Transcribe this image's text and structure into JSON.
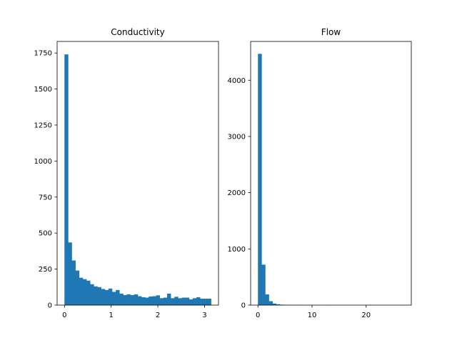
{
  "chart_data": [
    {
      "type": "bar",
      "title": "Conductivity",
      "xlabel": "",
      "ylabel": "",
      "xlim": [
        -0.157,
        3.299
      ],
      "ylim": [
        0,
        1830
      ],
      "xticks": [
        0,
        1,
        2,
        3
      ],
      "yticks": [
        0,
        250,
        500,
        750,
        1000,
        1250,
        1500,
        1750
      ],
      "bins": {
        "start": 0.0,
        "width": 0.0785,
        "count": 40
      },
      "values": [
        1740,
        435,
        310,
        240,
        190,
        180,
        170,
        145,
        130,
        125,
        112,
        105,
        115,
        92,
        105,
        80,
        70,
        75,
        70,
        75,
        62,
        55,
        52,
        60,
        62,
        68,
        48,
        52,
        80,
        48,
        58,
        48,
        52,
        52,
        40,
        48,
        55,
        45,
        45,
        45
      ],
      "color": "#1f77b4",
      "grid": false
    },
    {
      "type": "bar",
      "title": "Flow",
      "xlabel": "",
      "ylabel": "",
      "xlim": [
        -1.35,
        28.35
      ],
      "ylim": [
        0,
        4690
      ],
      "xticks": [
        0,
        10,
        20
      ],
      "yticks": [
        0,
        1000,
        2000,
        3000,
        4000
      ],
      "bins": {
        "start": 0.0,
        "width": 0.675,
        "count": 40
      },
      "values": [
        4470,
        720,
        190,
        70,
        28,
        15,
        8,
        5,
        4,
        3,
        2,
        2,
        1,
        1,
        1,
        1,
        1,
        0,
        0,
        1,
        0,
        0,
        0,
        0,
        0,
        0,
        0,
        0,
        0,
        0,
        0,
        0,
        0,
        0,
        0,
        0,
        0,
        0,
        0,
        1
      ],
      "color": "#1f77b4",
      "grid": false
    }
  ]
}
